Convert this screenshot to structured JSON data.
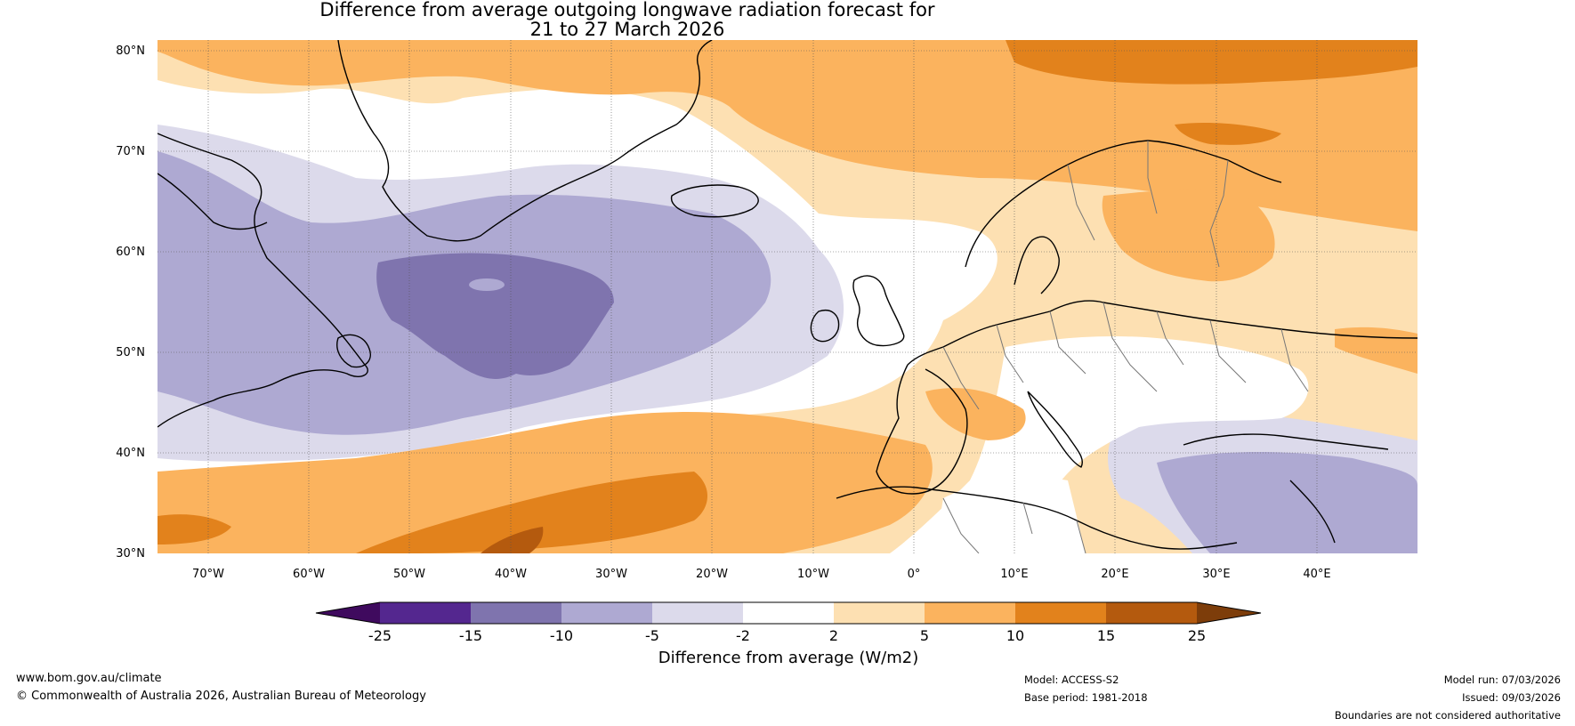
{
  "title": {
    "line1": "Difference from average outgoing longwave radiation forecast for",
    "line2": "21 to 27 March 2026"
  },
  "map": {
    "lat_labels": [
      "80°N",
      "70°N",
      "60°N",
      "50°N",
      "40°N",
      "30°N"
    ],
    "lon_labels": [
      "70°W",
      "60°W",
      "50°W",
      "40°W",
      "30°W",
      "20°W",
      "10°W",
      "0°",
      "10°E",
      "20°E",
      "30°E",
      "40°E"
    ],
    "extent": {
      "lon_min": -75,
      "lon_max": 50,
      "lat_min": 30,
      "lat_max": 81
    }
  },
  "colorbar": {
    "boundaries": [
      "-25",
      "-15",
      "-10",
      "-5",
      "-2",
      "2",
      "5",
      "10",
      "15",
      "25"
    ],
    "colors": [
      "#3f0a5e",
      "#54278f",
      "#7f74ae",
      "#aea9d2",
      "#dcdaeb",
      "#ffffff",
      "#fde0b2",
      "#fbb35e",
      "#e2821c",
      "#b45a0e",
      "#7d3d0a"
    ],
    "label": "Difference from average (W/m2)"
  },
  "footer": {
    "url": "www.bom.gov.au/climate",
    "copyright": "© Commonwealth of Australia 2026, Australian Bureau of Meteorology",
    "model": "Model: ACCESS-S2",
    "base_period": "Base period: 1981-2018",
    "model_run": "Model run: 07/03/2026",
    "issued": "Issued: 09/03/2026",
    "disclaimer": "Boundaries are not considered authoritative"
  }
}
